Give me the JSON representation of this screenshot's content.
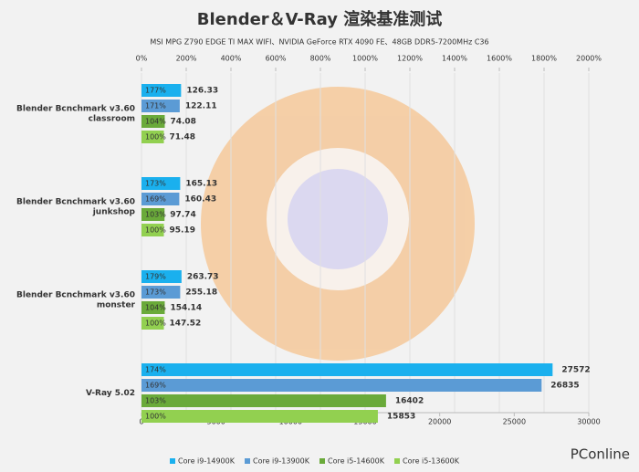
{
  "chart_data": [
    {
      "type": "hbar",
      "title": "Blender＆V-Ray 渲染基准测试",
      "subtitle": "MSI MPG Z790 EDGE TI MAX WIFI、NVIDIA GeForce RTX 4090 FE、48GB DDR5-7200MHz C36",
      "categories": [
        [
          "Blender Bcnchmark v3.60",
          "classroom"
        ],
        [
          "Blender Bcnchmark v3.60",
          "junkshop"
        ],
        [
          "Blender Bcnchmark v3.60",
          "monster"
        ]
      ],
      "xlim": [
        0,
        2000
      ],
      "axis_position": "top",
      "grid": true,
      "xticks": [
        {
          "value": 0,
          "label": "0%"
        },
        {
          "value": 200,
          "label": "200%"
        },
        {
          "value": 400,
          "label": "400%"
        },
        {
          "value": 600,
          "label": "600%"
        },
        {
          "value": 800,
          "label": "800%"
        },
        {
          "value": 1000,
          "label": "1000%"
        },
        {
          "value": 1200,
          "label": "1200%"
        },
        {
          "value": 1400,
          "label": "1400%"
        },
        {
          "value": 1600,
          "label": "1600%"
        },
        {
          "value": 1800,
          "label": "1800%"
        },
        {
          "value": 2000,
          "label": "2000%"
        }
      ],
      "series": [
        {
          "name": "Core i9-14900K",
          "color": "#1ab0ee",
          "values": [
            177,
            173,
            179
          ],
          "value_labels": [
            "177%",
            "173%",
            "179%"
          ],
          "scores": [
            126.33,
            165.13,
            263.73
          ]
        },
        {
          "name": "Core i9-13900K",
          "color": "#5b9bd5",
          "values": [
            171,
            169,
            173
          ],
          "value_labels": [
            "171%",
            "169%",
            "173%"
          ],
          "scores": [
            122.11,
            160.43,
            255.18
          ]
        },
        {
          "name": "Core i5-14600K",
          "color": "#6aaa3a",
          "values": [
            104,
            103,
            104
          ],
          "value_labels": [
            "104%",
            "103%",
            "104%"
          ],
          "scores": [
            74.08,
            97.74,
            154.14
          ]
        },
        {
          "name": "Core i5-13600K",
          "color": "#92d050",
          "values": [
            100,
            100,
            100
          ],
          "value_labels": [
            "100%",
            "100%",
            "100%"
          ],
          "scores": [
            71.48,
            95.19,
            147.52
          ]
        }
      ],
      "legend": "bottom",
      "watermark": "PConline"
    },
    {
      "type": "hbar",
      "categories": [
        [
          "V-Ray 5.02"
        ]
      ],
      "xlim": [
        0,
        30000
      ],
      "axis_position": "bottom",
      "grid": false,
      "xticks": [
        0,
        5000,
        10000,
        15000,
        20000,
        25000,
        30000
      ],
      "series": [
        {
          "color": "#1ab0ee",
          "values": [
            27572
          ],
          "shares": [
            {
              "value": 174,
              "label": "174%"
            }
          ]
        },
        {
          "color": "#5b9bd5",
          "values": [
            26835
          ],
          "shares": [
            {
              "value": 169,
              "label": "169%"
            }
          ]
        },
        {
          "color": "#6aaa3a",
          "values": [
            16402
          ],
          "shares": [
            {
              "value": 103,
              "label": "103%"
            }
          ]
        },
        {
          "color": "#92d050",
          "values": [
            15853
          ],
          "shares": [
            {
              "value": 100,
              "label": "100%"
            }
          ]
        }
      ]
    }
  ]
}
